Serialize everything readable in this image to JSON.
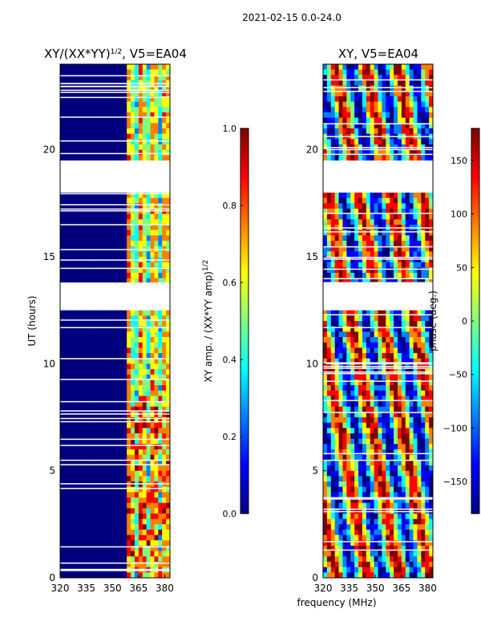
{
  "figure_title": "2021-02-15 0.0-24.0",
  "xlabel": "frequency (MHz)",
  "colors": {
    "jet": [
      "#00007f",
      "#0000ff",
      "#007fff",
      "#00ffff",
      "#7fff7f",
      "#ffff00",
      "#ff7f00",
      "#ff0000",
      "#7f0000"
    ]
  },
  "chart_data": [
    {
      "type": "heatmap",
      "title_base": "XY/(XX*YY)",
      "title_exponent": "1/2",
      "title_suffix": ", V5=EA04",
      "xlabel": "",
      "ylabel": "UT (hours)",
      "xlim": [
        320,
        383
      ],
      "ylim": [
        0,
        24
      ],
      "xticks": [
        320,
        335,
        350,
        365,
        380
      ],
      "yticks": [
        0,
        5,
        10,
        15,
        20
      ],
      "gaps_hours": [
        [
          12.6,
          13.8
        ],
        [
          18.0,
          19.5
        ]
      ],
      "colorbar": {
        "label_base": "XY amp. / (XX*YY amp)",
        "label_exponent": "1/2",
        "range": [
          0.0,
          1.0
        ],
        "ticks": [
          "0.0",
          "0.2",
          "0.4",
          "0.6",
          "0.8",
          "1.0"
        ],
        "tick_values": [
          0.0,
          0.2,
          0.4,
          0.6,
          0.8,
          1.0
        ]
      }
    },
    {
      "type": "heatmap",
      "title": "XY, V5=EA04",
      "xlabel": "",
      "ylabel": "",
      "xlim": [
        320,
        383
      ],
      "ylim": [
        0,
        24
      ],
      "xticks": [
        320,
        335,
        350,
        365,
        380
      ],
      "yticks": [
        0,
        5,
        10,
        15,
        20
      ],
      "gaps_hours": [
        [
          12.6,
          13.8
        ],
        [
          18.0,
          19.5
        ]
      ],
      "colorbar": {
        "label": "phase (deg.)",
        "range": [
          -180,
          180
        ],
        "ticks": [
          "150",
          "100",
          "50",
          "0",
          "−50",
          "−100",
          "−150"
        ],
        "tick_values": [
          150,
          100,
          50,
          0,
          -50,
          -100,
          -150
        ]
      }
    }
  ]
}
